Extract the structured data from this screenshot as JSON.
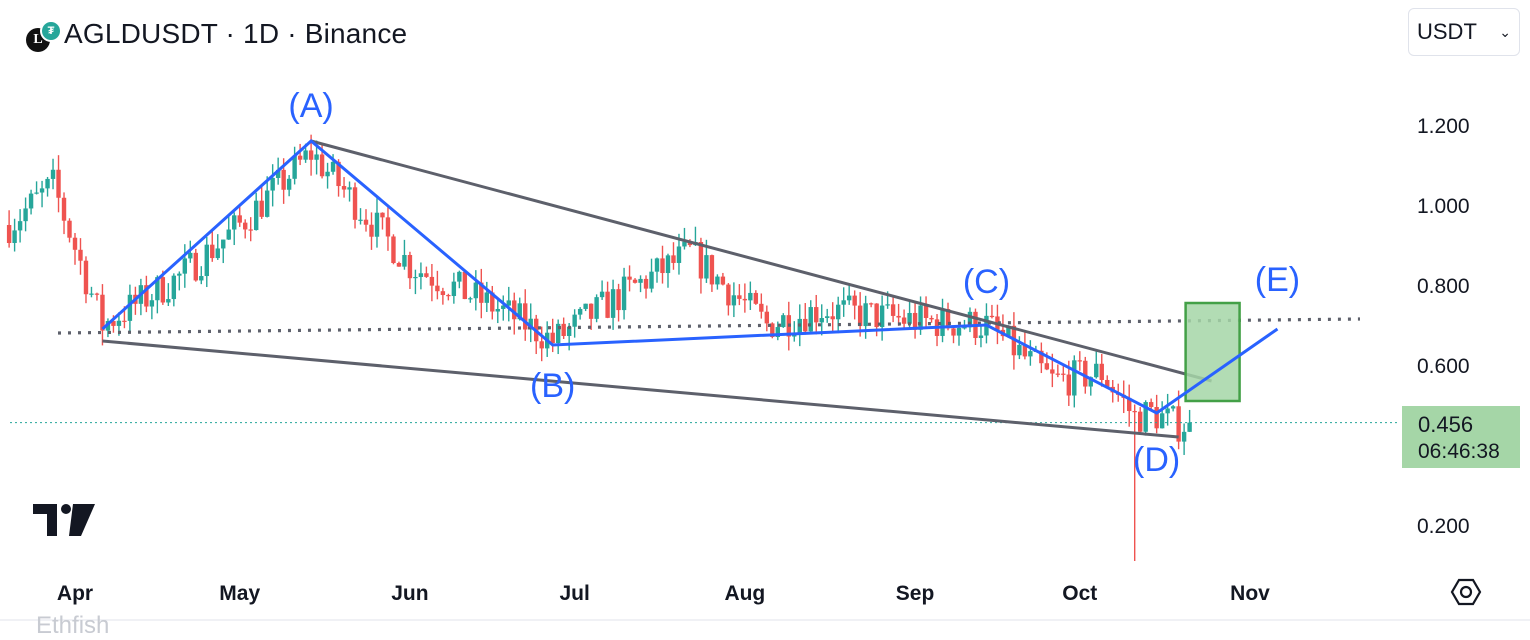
{
  "header": {
    "title": "AGLDUSDT · 1D · Binance",
    "logo_letter": "L",
    "badge_icon": "tether-icon"
  },
  "currency_select": {
    "value": "USDT"
  },
  "price_badge": {
    "price": "0.456",
    "countdown": "06:46:38"
  },
  "footer_text": "Ethfish",
  "colors": {
    "up": "#26a69a",
    "down": "#ef5350",
    "wave": "#2962ff",
    "trend": "#5d606b",
    "target": "#a5d6a7"
  },
  "chart_data": {
    "type": "candlestick",
    "symbol": "AGLDUSDT",
    "interval": "1D",
    "exchange": "Binance",
    "y_ticks": [
      "1.200",
      "1.000",
      "0.800",
      "0.600",
      "0.200"
    ],
    "x_ticks": [
      "Apr",
      "May",
      "Jun",
      "Jul",
      "Aug",
      "Sep",
      "Oct",
      "Nov"
    ],
    "x_range": [
      "2024-03-20",
      "2024-11-05"
    ],
    "current_price": 0.456,
    "wave_labels": [
      {
        "label": "(A)",
        "date": "2024-05-14",
        "price": 1.16
      },
      {
        "label": "(B)",
        "date": "2024-06-27",
        "price": 0.65
      },
      {
        "label": "(C)",
        "date": "2024-09-14",
        "price": 0.7
      },
      {
        "label": "(D)",
        "date": "2024-10-15",
        "price": 0.48
      },
      {
        "label": "(E)",
        "date": "2024-11-06",
        "price": 0.69
      }
    ],
    "wave_path": [
      {
        "date": "2024-04-06",
        "price": 0.69
      },
      {
        "date": "2024-05-14",
        "price": 1.16
      },
      {
        "date": "2024-06-27",
        "price": 0.65
      },
      {
        "date": "2024-09-14",
        "price": 0.7
      },
      {
        "date": "2024-10-15",
        "price": 0.48
      },
      {
        "date": "2024-11-06",
        "price": 0.69
      }
    ],
    "trendlines": [
      {
        "name": "upper",
        "from": {
          "date": "2024-05-14",
          "price": 1.16
        },
        "to": {
          "date": "2024-10-25",
          "price": 0.56
        }
      },
      {
        "name": "lower",
        "from": {
          "date": "2024-04-06",
          "price": 0.66
        },
        "to": {
          "date": "2024-10-19",
          "price": 0.42
        }
      }
    ],
    "support_line": {
      "price": 0.7,
      "style": "dotted"
    },
    "target_box": {
      "from": "2024-10-21",
      "to": "2024-10-23",
      "top": 0.755,
      "bottom": 0.51
    },
    "ohlc_generation": {
      "start": "2024-03-20",
      "anchors": [
        [
          "2024-03-20",
          0.95
        ],
        [
          "2024-03-28",
          1.05
        ],
        [
          "2024-04-06",
          0.7
        ],
        [
          "2024-04-20",
          0.82
        ],
        [
          "2024-05-01",
          0.95
        ],
        [
          "2024-05-14",
          1.13
        ],
        [
          "2024-06-01",
          0.85
        ],
        [
          "2024-06-20",
          0.72
        ],
        [
          "2024-06-27",
          0.66
        ],
        [
          "2024-07-10",
          0.78
        ],
        [
          "2024-07-22",
          0.88
        ],
        [
          "2024-08-05",
          0.7
        ],
        [
          "2024-08-15",
          0.74
        ],
        [
          "2024-09-01",
          0.71
        ],
        [
          "2024-09-14",
          0.7
        ],
        [
          "2024-09-26",
          0.56
        ],
        [
          "2024-10-05",
          0.58
        ],
        [
          "2024-10-11",
          0.47
        ],
        [
          "2024-10-14",
          0.48
        ],
        [
          "2024-10-19",
          0.45
        ],
        [
          "2024-10-21",
          0.456
        ]
      ]
    }
  }
}
